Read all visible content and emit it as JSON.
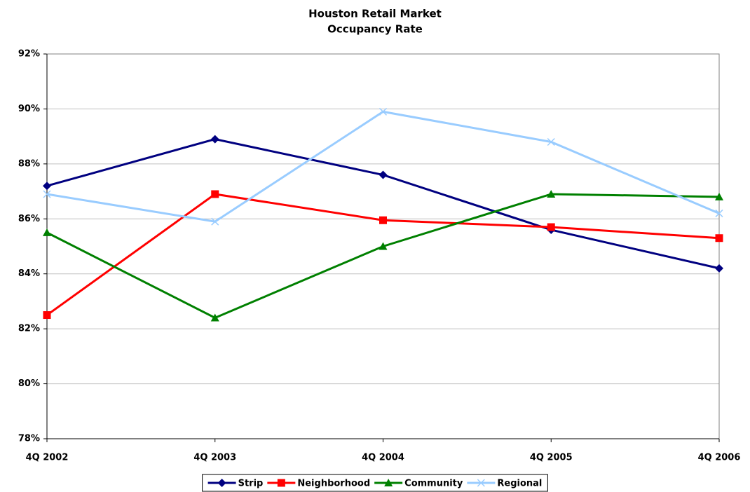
{
  "chart_data": {
    "type": "line",
    "title": "Houston Retail Market",
    "subtitle": "Occupancy Rate",
    "categories": [
      "4Q 2002",
      "4Q 2003",
      "4Q 2004",
      "4Q 2005",
      "4Q 2006"
    ],
    "series": [
      {
        "name": "Strip",
        "color": "#000080",
        "marker": "diamond",
        "values": [
          87.2,
          88.9,
          87.6,
          85.6,
          84.2
        ]
      },
      {
        "name": "Neighborhood",
        "color": "#ff0000",
        "marker": "square",
        "values": [
          82.5,
          86.9,
          85.95,
          85.7,
          85.3
        ]
      },
      {
        "name": "Community",
        "color": "#008000",
        "marker": "triangle",
        "values": [
          85.5,
          82.4,
          85.0,
          86.9,
          86.8
        ]
      },
      {
        "name": "Regional",
        "color": "#99ccff",
        "marker": "x",
        "values": [
          86.9,
          85.9,
          89.9,
          88.8,
          86.2
        ]
      }
    ],
    "ylim": [
      78,
      92
    ],
    "yticks": [
      {
        "value": 78,
        "label": "78%"
      },
      {
        "value": 80,
        "label": "80%"
      },
      {
        "value": 82,
        "label": "82%"
      },
      {
        "value": 84,
        "label": "84%"
      },
      {
        "value": 86,
        "label": "86%"
      },
      {
        "value": 88,
        "label": "88%"
      },
      {
        "value": 90,
        "label": "90%"
      },
      {
        "value": 92,
        "label": "92%"
      }
    ],
    "grid": true,
    "legend": "bottom"
  }
}
